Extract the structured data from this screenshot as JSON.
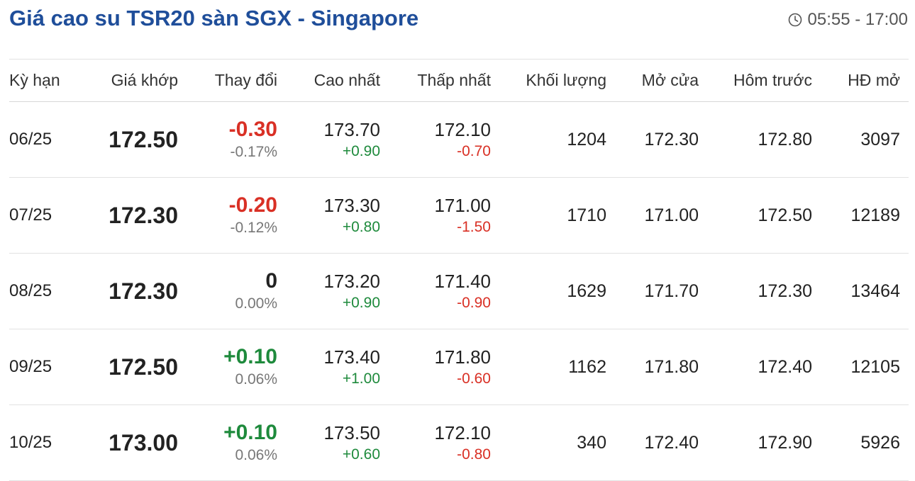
{
  "header": {
    "title": "Giá cao su TSR20 sàn SGX - Singapore",
    "time_range": "05:55 - 17:00",
    "time_icon": "clock-icon"
  },
  "table": {
    "columns": [
      "Kỳ hạn",
      "Giá khớp",
      "Thay đổi",
      "Cao nhất",
      "Thấp nhất",
      "Khối lượng",
      "Mở cửa",
      "Hôm trước",
      "HĐ mở"
    ],
    "rows": [
      {
        "term": "06/25",
        "price": "172.50",
        "change": "-0.30",
        "change_pct": "-0.17%",
        "change_dir": "neg",
        "high": "173.70",
        "high_chg": "+0.90",
        "low": "172.10",
        "low_chg": "-0.70",
        "volume": "1204",
        "open": "172.30",
        "prev": "172.80",
        "oi": "3097"
      },
      {
        "term": "07/25",
        "price": "172.30",
        "change": "-0.20",
        "change_pct": "-0.12%",
        "change_dir": "neg",
        "high": "173.30",
        "high_chg": "+0.80",
        "low": "171.00",
        "low_chg": "-1.50",
        "volume": "1710",
        "open": "171.00",
        "prev": "172.50",
        "oi": "12189"
      },
      {
        "term": "08/25",
        "price": "172.30",
        "change": "0",
        "change_pct": "0.00%",
        "change_dir": "zero",
        "high": "173.20",
        "high_chg": "+0.90",
        "low": "171.40",
        "low_chg": "-0.90",
        "volume": "1629",
        "open": "171.70",
        "prev": "172.30",
        "oi": "13464"
      },
      {
        "term": "09/25",
        "price": "172.50",
        "change": "+0.10",
        "change_pct": "0.06%",
        "change_dir": "pos",
        "high": "173.40",
        "high_chg": "+1.00",
        "low": "171.80",
        "low_chg": "-0.60",
        "volume": "1162",
        "open": "171.80",
        "prev": "172.40",
        "oi": "12105"
      },
      {
        "term": "10/25",
        "price": "173.00",
        "change": "+0.10",
        "change_pct": "0.06%",
        "change_dir": "pos",
        "high": "173.50",
        "high_chg": "+0.60",
        "low": "172.10",
        "low_chg": "-0.80",
        "volume": "340",
        "open": "172.40",
        "prev": "172.90",
        "oi": "5926"
      }
    ]
  },
  "colors": {
    "title": "#1f4e9a",
    "negative": "#d93025",
    "positive": "#1e8a3c"
  }
}
